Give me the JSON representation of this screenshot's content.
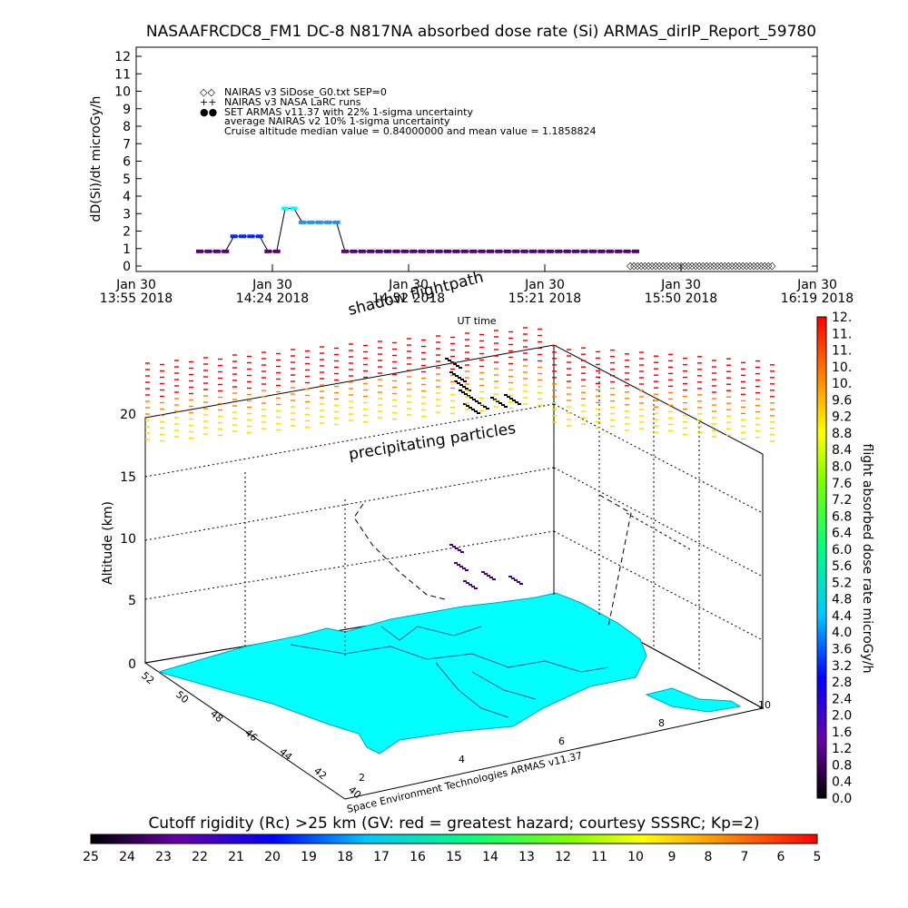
{
  "title": "NASAAFRCDC8_FM1 DC-8   N817NA absorbed dose rate (Si) ARMAS_dirIP_Report_59780",
  "chart_data": [
    {
      "type": "line",
      "ylabel": "dD(Si)/dt microGy/h",
      "xlabel": "UT time",
      "ylim": [
        0,
        12
      ],
      "y_ticks": [
        "0",
        "1",
        "2",
        "3",
        "4",
        "5",
        "6",
        "7",
        "8",
        "9",
        "10",
        "11",
        "12"
      ],
      "x_ticks": [
        {
          "l1": "Jan 30",
          "l2": "13:55 2018"
        },
        {
          "l1": "Jan 30",
          "l2": "14:24 2018"
        },
        {
          "l1": "Jan 30",
          "l2": "14:52 2018"
        },
        {
          "l1": "Jan 30",
          "l2": "15:21 2018"
        },
        {
          "l1": "Jan 30",
          "l2": "15:50 2018"
        },
        {
          "l1": "Jan 30",
          "l2": "16:19 2018"
        }
      ],
      "legend": {
        "placement": "top-left",
        "entries": [
          {
            "symbol": "◇◇",
            "label": "NAIRAS v3 SiDose_G0.txt SEP=0"
          },
          {
            "symbol": "++",
            "label": "NAIRAS v3 NASA LaRC runs"
          },
          {
            "symbol": "●●",
            "label": "SET ARMAS v11.37 with 22% 1-sigma uncertainty",
            "color": "#0050ff"
          },
          {
            "symbol": "",
            "label": "average NAIRAS v2 10% 1-sigma uncertainty"
          },
          {
            "symbol": "",
            "label": "Cruise altitude median value = 0.84000000 and mean value = 1.1858824"
          }
        ]
      },
      "series": [
        {
          "name": "SET ARMAS v11.37",
          "x": [
            18,
            20,
            22,
            24,
            26,
            28,
            30,
            32,
            34,
            36,
            38,
            40,
            42,
            44,
            46,
            48,
            50,
            52,
            54,
            56,
            58,
            60,
            62,
            64,
            66,
            68,
            70,
            72,
            74,
            76,
            78,
            80,
            82,
            84,
            86,
            88,
            90,
            92,
            94,
            96,
            98,
            100,
            102,
            104,
            106,
            108,
            110,
            112,
            114,
            116,
            118,
            120
          ],
          "y": [
            0.84,
            0.84,
            0.84,
            0.84,
            1.7,
            1.7,
            1.7,
            1.7,
            0.84,
            0.84,
            3.3,
            3.3,
            2.5,
            2.5,
            2.5,
            2.5,
            2.5,
            0.84,
            0.84,
            0.84,
            0.84,
            0.84,
            0.84,
            0.84,
            0.84,
            0.84,
            0.84,
            0.84,
            0.84,
            0.84,
            0.84,
            0.84,
            0.84,
            0.84,
            0.84,
            0.84,
            0.84,
            0.84,
            0.84,
            0.84,
            0.84,
            0.84,
            0.84,
            0.84,
            0.84,
            0.84,
            0.84,
            0.84,
            0.84,
            0.84,
            0.84,
            0.84
          ]
        }
      ]
    },
    {
      "type": "scatter",
      "title": "",
      "zlabel": "Altitude (km)",
      "z_ticks": [
        "0",
        "5",
        "10",
        "15",
        "20"
      ],
      "lat_ticks": [
        "52",
        "50",
        "48",
        "46",
        "44",
        "42",
        "40"
      ],
      "lon_ticks": [
        "2",
        "4",
        "6",
        "8",
        "10"
      ],
      "annotations": {
        "shadow": "shadow flightpath",
        "precip": "precipitating particles",
        "credit": "Space Environment Technologies ARMAS v11.37"
      },
      "colorbar": {
        "label": "flight absorbed dose rate microGy/h",
        "ticks": [
          "0.0",
          "0.4",
          "0.8",
          "1.2",
          "1.6",
          "2.0",
          "2.4",
          "2.8",
          "3.2",
          "3.6",
          "4.0",
          "4.4",
          "4.8",
          "5.2",
          "5.6",
          "6.0",
          "6.4",
          "6.8",
          "7.2",
          "7.6",
          "8.0",
          "8.4",
          "8.8",
          "9.2",
          "9.6",
          "10.",
          "10.",
          "11.",
          "11.",
          "12."
        ]
      }
    },
    {
      "type": "heatmap",
      "title": "Cutoff rigidity (Rc) >25 km (GV: red = greatest hazard; courtesy SSSRC; Kp=2)",
      "colorbar": {
        "ticks": [
          "25",
          "24",
          "23",
          "22",
          "21",
          "20",
          "19",
          "18",
          "17",
          "16",
          "15",
          "14",
          "13",
          "12",
          "11",
          "10",
          "9",
          "8",
          "7",
          "6",
          "5"
        ]
      }
    }
  ],
  "colors": {
    "armas": "#0050ff",
    "map": "#00ffff",
    "high": "#e00000",
    "mid": "#ffd700"
  }
}
